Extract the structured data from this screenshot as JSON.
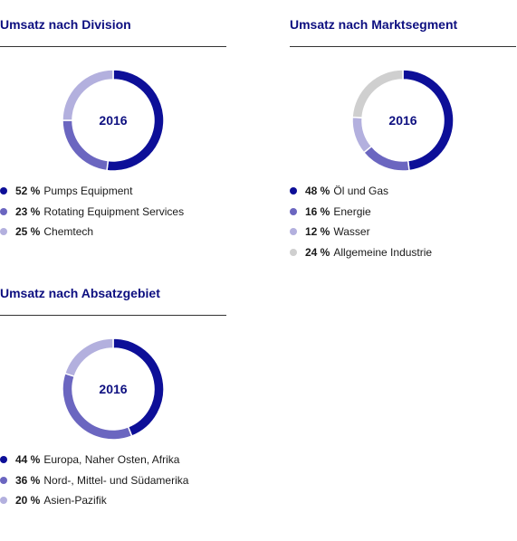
{
  "colors": {
    "title": "#0d0f80",
    "rule": "#333333",
    "dark_blue": "#0d0f98",
    "mid_blue": "#6b66c0",
    "light_blue": "#b3b0de",
    "light_gray": "#cfcfcf"
  },
  "chart_data": [
    {
      "type": "pie",
      "title": "Umsatz nach Division",
      "center_label": "2016",
      "legend_position": "bottom-left",
      "slices": [
        {
          "label": "Pumps Equipment",
          "value": 52,
          "value_label": "52 %",
          "color": "#0d0f98"
        },
        {
          "label": "Rotating Equipment Services",
          "value": 23,
          "value_label": "23 %",
          "color": "#6b66c0"
        },
        {
          "label": "Chemtech",
          "value": 25,
          "value_label": "25 %",
          "color": "#b3b0de"
        }
      ]
    },
    {
      "type": "pie",
      "title": "Umsatz nach Marktsegment",
      "center_label": "2016",
      "legend_position": "bottom-left",
      "slices": [
        {
          "label": "Öl und Gas",
          "value": 48,
          "value_label": "48 %",
          "color": "#0d0f98"
        },
        {
          "label": "Energie",
          "value": 16,
          "value_label": "16 %",
          "color": "#6b66c0"
        },
        {
          "label": "Wasser",
          "value": 12,
          "value_label": "12 %",
          "color": "#b3b0de"
        },
        {
          "label": "Allgemeine Industrie",
          "value": 24,
          "value_label": "24 %",
          "color": "#cfcfcf"
        }
      ]
    },
    {
      "type": "pie",
      "title": "Umsatz nach Absatzgebiet",
      "center_label": "2016",
      "legend_position": "bottom-left",
      "slices": [
        {
          "label": "Europa, Naher Osten, Afrika",
          "value": 44,
          "value_label": "44 %",
          "color": "#0d0f98"
        },
        {
          "label": "Nord-, Mittel- und Südamerika",
          "value": 36,
          "value_label": "36 %",
          "color": "#6b66c0"
        },
        {
          "label": "Asien-Pazifik",
          "value": 20,
          "value_label": "20 %",
          "color": "#b3b0de"
        }
      ]
    }
  ]
}
